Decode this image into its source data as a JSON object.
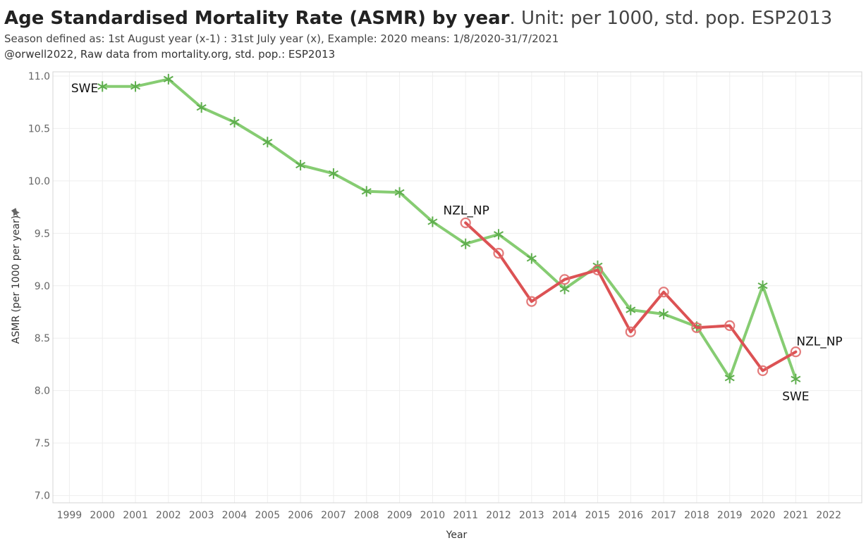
{
  "header": {
    "title_main": "Age Standardised Mortality Rate (ASMR) by year",
    "title_unit": ". Unit: per 1000, std. pop. ESP2013",
    "subtitle": "Season defined as: 1st August year (x-1) : 31st July  year (x), Example: 2020 means: 1/8/2020-31/7/2021",
    "credit": "@orwell2022,  Raw data from mortality.org, std. pop.: ESP2013"
  },
  "chart_data": {
    "type": "line",
    "title": "Age Standardised Mortality Rate (ASMR) by year. Unit: per 1000, std. pop. ESP2013",
    "xlabel": "Year",
    "ylabel": "ASMR (per 1000 per year)",
    "ylabel_icon": "pin-icon",
    "xlim": [
      1998.5,
      2023
    ],
    "ylim": [
      6.93,
      11.04
    ],
    "x_ticks": [
      1999,
      2000,
      2001,
      2002,
      2003,
      2004,
      2005,
      2006,
      2007,
      2008,
      2009,
      2010,
      2011,
      2012,
      2013,
      2014,
      2015,
      2016,
      2017,
      2018,
      2019,
      2020,
      2021,
      2022
    ],
    "y_ticks": [
      7.0,
      7.5,
      8.0,
      8.5,
      9.0,
      9.5,
      10.0,
      10.5,
      11.0
    ],
    "y_tick_labels": [
      "7.0",
      "7.5",
      "8.0",
      "8.5",
      "9.0",
      "9.5",
      "10.0",
      "10.5",
      "11.0"
    ],
    "grid": true,
    "series": [
      {
        "name": "SWE",
        "color": "#86cc72",
        "marker": "asterisk",
        "x": [
          2000,
          2001,
          2002,
          2003,
          2004,
          2005,
          2006,
          2007,
          2008,
          2009,
          2010,
          2011,
          2012,
          2013,
          2014,
          2015,
          2016,
          2017,
          2018,
          2019,
          2020,
          2021
        ],
        "values": [
          10.9,
          10.9,
          10.97,
          10.7,
          10.56,
          10.37,
          10.15,
          10.07,
          9.9,
          9.89,
          9.61,
          9.4,
          9.49,
          9.26,
          8.97,
          9.19,
          8.77,
          8.73,
          8.61,
          8.12,
          9.0,
          8.11
        ],
        "labels": [
          {
            "text": "SWE",
            "at": "start",
            "position": "left"
          },
          {
            "text": "SWE",
            "at": "end",
            "position": "below"
          }
        ]
      },
      {
        "name": "NZL_NP",
        "color": "#dc5254",
        "marker": "circle",
        "x": [
          2011,
          2012,
          2013,
          2014,
          2015,
          2016,
          2017,
          2018,
          2019,
          2020,
          2021
        ],
        "values": [
          9.6,
          9.31,
          8.85,
          9.06,
          9.15,
          8.56,
          8.94,
          8.6,
          8.62,
          8.19,
          8.37
        ],
        "labels": [
          {
            "text": "NZL_NP",
            "at": "start",
            "position": "above"
          },
          {
            "text": "NZL_NP",
            "at": "end",
            "position": "above-right"
          }
        ]
      }
    ]
  }
}
